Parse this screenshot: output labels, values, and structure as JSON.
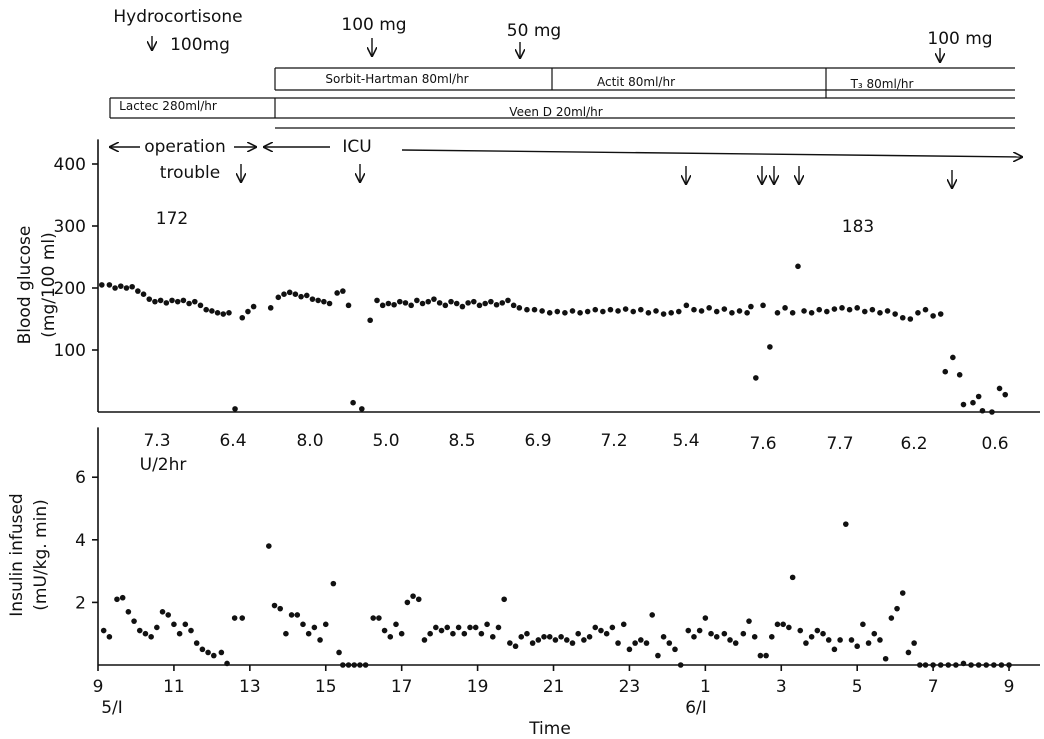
{
  "treatment": {
    "drug": "Hydrocortisone",
    "doses": [
      "100mg",
      "100 mg",
      "50 mg",
      "100 mg"
    ],
    "infusions": [
      "Sorbit-Hartman 80ml/hr",
      "Actit 80ml/hr",
      "T₃ 80ml/hr",
      "Lactec 280ml/hr",
      "Veen D 20ml/hr"
    ],
    "phases": [
      "operation",
      "trouble",
      "ICU"
    ]
  },
  "chart_data": [
    {
      "type": "scatter",
      "ylabel": [
        "Blood glucose",
        "(mg/100 ml)"
      ],
      "annotations": [
        "172",
        "183"
      ],
      "color": "#111111",
      "xlim": [
        9,
        33.7
      ],
      "ylim": [
        0,
        430
      ],
      "yticks": [
        100,
        200,
        300,
        400
      ],
      "grid": false,
      "x": [
        9.1,
        9.3,
        9.45,
        9.6,
        9.75,
        9.9,
        10.05,
        10.2,
        10.35,
        10.5,
        10.65,
        10.8,
        10.95,
        11.1,
        11.25,
        11.4,
        11.55,
        11.7,
        11.85,
        12.0,
        12.15,
        12.3,
        12.45,
        12.61,
        12.8,
        12.95,
        13.1,
        13.55,
        13.75,
        13.9,
        14.05,
        14.2,
        14.35,
        14.5,
        14.65,
        14.8,
        14.95,
        15.1,
        15.3,
        15.45,
        15.6,
        15.72,
        15.95,
        16.17,
        16.35,
        16.5,
        16.65,
        16.8,
        16.95,
        17.1,
        17.25,
        17.4,
        17.55,
        17.7,
        17.85,
        18.0,
        18.15,
        18.3,
        18.45,
        18.6,
        18.75,
        18.9,
        19.05,
        19.2,
        19.35,
        19.5,
        19.65,
        19.8,
        19.95,
        20.1,
        20.3,
        20.5,
        20.7,
        20.9,
        21.1,
        21.3,
        21.5,
        21.7,
        21.9,
        22.1,
        22.3,
        22.5,
        22.7,
        22.9,
        23.1,
        23.3,
        23.5,
        23.7,
        23.9,
        24.1,
        24.3,
        24.5,
        24.7,
        24.9,
        25.1,
        25.3,
        25.5,
        25.7,
        25.9,
        26.1,
        26.2,
        26.33,
        26.52,
        26.7,
        26.9,
        27.1,
        27.3,
        27.44,
        27.6,
        27.8,
        28.0,
        28.2,
        28.4,
        28.6,
        28.8,
        29.0,
        29.2,
        29.4,
        29.6,
        29.8,
        30.0,
        30.2,
        30.4,
        30.6,
        30.8,
        31.0,
        31.2,
        31.32,
        31.52,
        31.7,
        31.8,
        32.05,
        32.2,
        32.3,
        32.55,
        32.75,
        32.9
      ],
      "values": [
        205,
        205,
        200,
        203,
        200,
        202,
        195,
        190,
        182,
        178,
        180,
        176,
        180,
        178,
        180,
        175,
        178,
        172,
        165,
        163,
        160,
        158,
        160,
        5,
        152,
        162,
        170,
        168,
        185,
        190,
        193,
        190,
        186,
        188,
        182,
        180,
        178,
        175,
        192,
        195,
        172,
        15,
        5,
        148,
        180,
        172,
        175,
        173,
        178,
        176,
        172,
        180,
        175,
        178,
        182,
        176,
        172,
        178,
        175,
        170,
        176,
        178,
        172,
        175,
        178,
        173,
        176,
        180,
        172,
        168,
        165,
        165,
        163,
        160,
        162,
        160,
        163,
        160,
        162,
        165,
        162,
        165,
        163,
        166,
        162,
        165,
        160,
        163,
        158,
        160,
        162,
        172,
        165,
        163,
        168,
        162,
        166,
        160,
        163,
        160,
        170,
        55,
        172,
        105,
        160,
        168,
        160,
        235,
        163,
        160,
        165,
        162,
        166,
        168,
        165,
        168,
        162,
        165,
        160,
        163,
        158,
        152,
        150,
        160,
        165,
        155,
        158,
        65,
        88,
        60,
        12,
        15,
        25,
        2,
        0,
        38,
        28
      ]
    },
    {
      "type": "scatter",
      "ylabel": [
        "Insulin infused",
        "(mU/kg. min)"
      ],
      "xlabel": "Time",
      "dates": [
        "5/I",
        "6/I"
      ],
      "annotations": [
        "7.3",
        "6.4",
        "8.0",
        "5.0",
        "8.5",
        "6.9",
        "7.2",
        "5.4",
        "7.6",
        "7.7",
        "6.2",
        "0.6",
        "U/2hr"
      ],
      "color": "#111111",
      "xlim": [
        9,
        33.7
      ],
      "ylim": [
        0,
        7.4
      ],
      "yticks": [
        2,
        4,
        6
      ],
      "grid": false,
      "xticks": [
        9,
        11,
        13,
        15,
        17,
        19,
        21,
        23,
        {
          "value": 25,
          "label": "1"
        },
        {
          "value": 27,
          "label": "3"
        },
        {
          "value": 29,
          "label": "5"
        },
        {
          "value": 31,
          "label": "7"
        },
        {
          "value": 33,
          "label": "9"
        }
      ],
      "x": [
        9.15,
        9.3,
        9.5,
        9.65,
        9.8,
        9.95,
        10.1,
        10.25,
        10.4,
        10.55,
        10.7,
        10.85,
        11.0,
        11.15,
        11.3,
        11.45,
        11.6,
        11.75,
        11.9,
        12.05,
        12.25,
        12.4,
        12.6,
        12.8,
        13.5,
        13.65,
        13.8,
        13.95,
        14.1,
        14.25,
        14.4,
        14.55,
        14.7,
        14.85,
        15.0,
        15.2,
        15.35,
        15.45,
        15.6,
        15.75,
        15.9,
        16.05,
        16.25,
        16.4,
        16.55,
        16.7,
        16.85,
        17.0,
        17.15,
        17.3,
        17.45,
        17.6,
        17.75,
        17.9,
        18.05,
        18.2,
        18.35,
        18.5,
        18.65,
        18.8,
        18.95,
        19.1,
        19.25,
        19.4,
        19.55,
        19.7,
        19.85,
        20.0,
        20.15,
        20.3,
        20.45,
        20.6,
        20.75,
        20.9,
        21.05,
        21.2,
        21.35,
        21.5,
        21.65,
        21.8,
        21.95,
        22.1,
        22.25,
        22.4,
        22.55,
        22.7,
        22.85,
        23.0,
        23.15,
        23.3,
        23.45,
        23.6,
        23.75,
        23.9,
        24.05,
        24.2,
        24.35,
        24.55,
        24.7,
        24.85,
        25.0,
        25.15,
        25.3,
        25.5,
        25.65,
        25.8,
        26.0,
        26.15,
        26.3,
        26.45,
        26.6,
        26.75,
        26.9,
        27.05,
        27.2,
        27.3,
        27.5,
        27.65,
        27.8,
        27.95,
        28.1,
        28.25,
        28.4,
        28.55,
        28.7,
        28.85,
        29.0,
        29.15,
        29.3,
        29.45,
        29.6,
        29.75,
        29.9,
        30.05,
        30.2,
        30.35,
        30.5,
        30.65,
        30.8,
        31.0,
        31.2,
        31.4,
        31.6,
        31.8,
        32.0,
        32.2,
        32.4,
        32.6,
        32.8,
        33.0
      ],
      "values": [
        1.1,
        0.9,
        2.1,
        2.15,
        1.7,
        1.4,
        1.1,
        1.0,
        0.9,
        1.2,
        1.7,
        1.6,
        1.3,
        1.0,
        1.3,
        1.1,
        0.7,
        0.5,
        0.4,
        0.3,
        0.4,
        0.05,
        1.5,
        1.5,
        3.8,
        1.9,
        1.8,
        1.0,
        1.6,
        1.6,
        1.3,
        1.0,
        1.2,
        0.8,
        1.3,
        2.6,
        0.4,
        0,
        0,
        0,
        0,
        0,
        1.5,
        1.5,
        1.1,
        0.9,
        1.3,
        1.0,
        2.0,
        2.2,
        2.1,
        0.8,
        1.0,
        1.2,
        1.1,
        1.2,
        1.0,
        1.2,
        1.0,
        1.2,
        1.2,
        1.0,
        1.3,
        0.9,
        1.2,
        2.1,
        0.7,
        0.6,
        0.9,
        1.0,
        0.7,
        0.8,
        0.9,
        0.9,
        0.8,
        0.9,
        0.8,
        0.7,
        1.0,
        0.8,
        0.9,
        1.2,
        1.1,
        1.0,
        1.2,
        0.7,
        1.3,
        0.5,
        0.7,
        0.8,
        0.7,
        1.6,
        0.3,
        0.9,
        0.7,
        0.5,
        0,
        1.1,
        0.9,
        1.1,
        1.5,
        1.0,
        0.9,
        1.0,
        0.8,
        0.7,
        1.0,
        1.4,
        0.9,
        0.3,
        0.3,
        0.9,
        1.3,
        1.3,
        1.2,
        2.8,
        1.1,
        0.7,
        0.9,
        1.1,
        1.0,
        0.8,
        0.5,
        0.8,
        4.5,
        0.8,
        0.6,
        1.3,
        0.7,
        1.0,
        0.8,
        0.2,
        1.5,
        1.8,
        2.3,
        0.4,
        0.7,
        0,
        0,
        0,
        0,
        0,
        0,
        0.05,
        0,
        0,
        0,
        0,
        0,
        0
      ]
    }
  ]
}
